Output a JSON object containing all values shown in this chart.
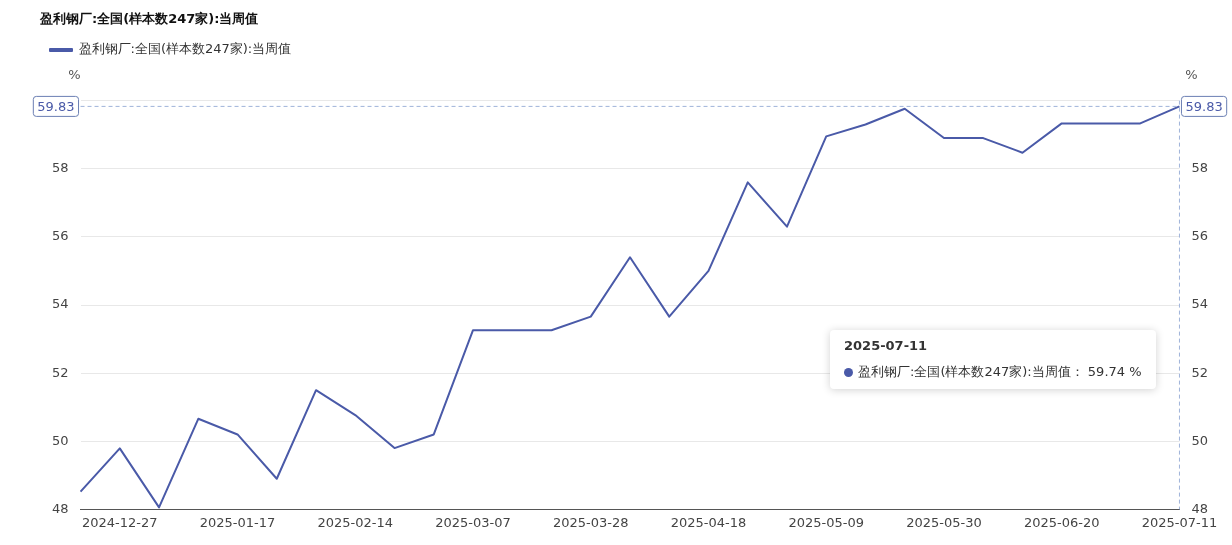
{
  "chart_data": {
    "type": "line",
    "title": "盈利钢厂:全国(样本数247家):当周值",
    "ylabel": "%",
    "y2label": "%",
    "categories": [
      null,
      "2024-12-27",
      null,
      null,
      "2025-01-17",
      null,
      null,
      "2025-02-14",
      null,
      null,
      "2025-03-07",
      null,
      null,
      "2025-03-28",
      null,
      null,
      "2025-04-18",
      null,
      null,
      "2025-05-09",
      null,
      null,
      "2025-05-30",
      null,
      null,
      "2025-06-20",
      null,
      null,
      "2025-07-11"
    ],
    "series": [
      {
        "name": "盈利钢厂:全国(样本数247家):当周值",
        "color": "#4a5aa8",
        "values": [
          48.52,
          49.79,
          48.06,
          50.66,
          50.2,
          48.9,
          51.5,
          50.77,
          49.8,
          50.2,
          53.26,
          53.26,
          53.26,
          53.66,
          55.4,
          53.66,
          55.0,
          57.6,
          56.3,
          58.95,
          59.3,
          59.76,
          58.9,
          58.9,
          58.47,
          59.33,
          59.33,
          59.33,
          59.83
        ]
      }
    ],
    "ylim": [
      48,
      60
    ],
    "yticks": [
      48,
      50,
      52,
      54,
      56,
      58,
      {
        "value": 60,
        "label": null
      }
    ],
    "y2lim": [
      48,
      60
    ],
    "y2ticks": [
      48,
      50,
      52,
      54,
      56,
      58
    ],
    "ref_lines": [
      {
        "axis": "y",
        "value": 59.83,
        "label": "59.83",
        "line_style": "dashed"
      },
      {
        "axis": "x",
        "value": "2025-07-11",
        "line_style": "dashed"
      }
    ],
    "annotations": [
      "2025-07-11",
      "盈利钢厂:全国(样本数247家):当周值：  59.74 %"
    ],
    "grid": "y",
    "legend": "top left",
    "marker": "none",
    "line_style": "solid"
  }
}
